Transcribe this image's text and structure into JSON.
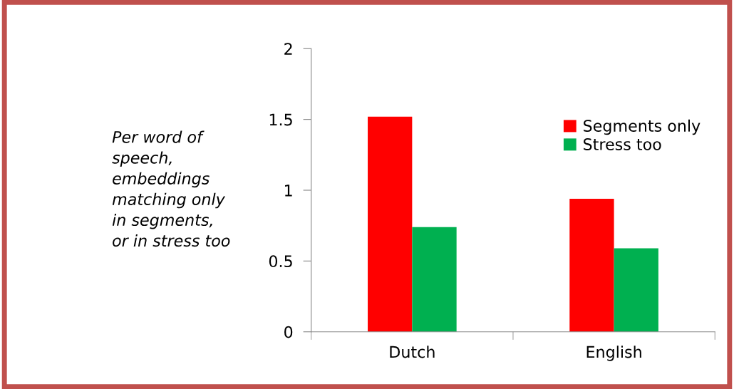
{
  "chart_data": {
    "type": "bar",
    "ylabel": "Per word of\nspeech,\nembeddings\nmatching only\nin segments,\nor in stress too",
    "categories": [
      "Dutch",
      "English"
    ],
    "series": [
      {
        "name": "Segments only",
        "color": "#ff0000",
        "values": [
          1.52,
          0.94
        ]
      },
      {
        "name": "Stress too",
        "color": "#00b050",
        "values": [
          0.74,
          0.59
        ]
      }
    ],
    "ylim": [
      0,
      2
    ],
    "yticks": [
      0,
      {
        "value": 0.5,
        "label": "0.5"
      },
      1,
      {
        "value": 1.5,
        "label": "1.5"
      },
      2
    ],
    "grid": false,
    "legend": "top right"
  }
}
